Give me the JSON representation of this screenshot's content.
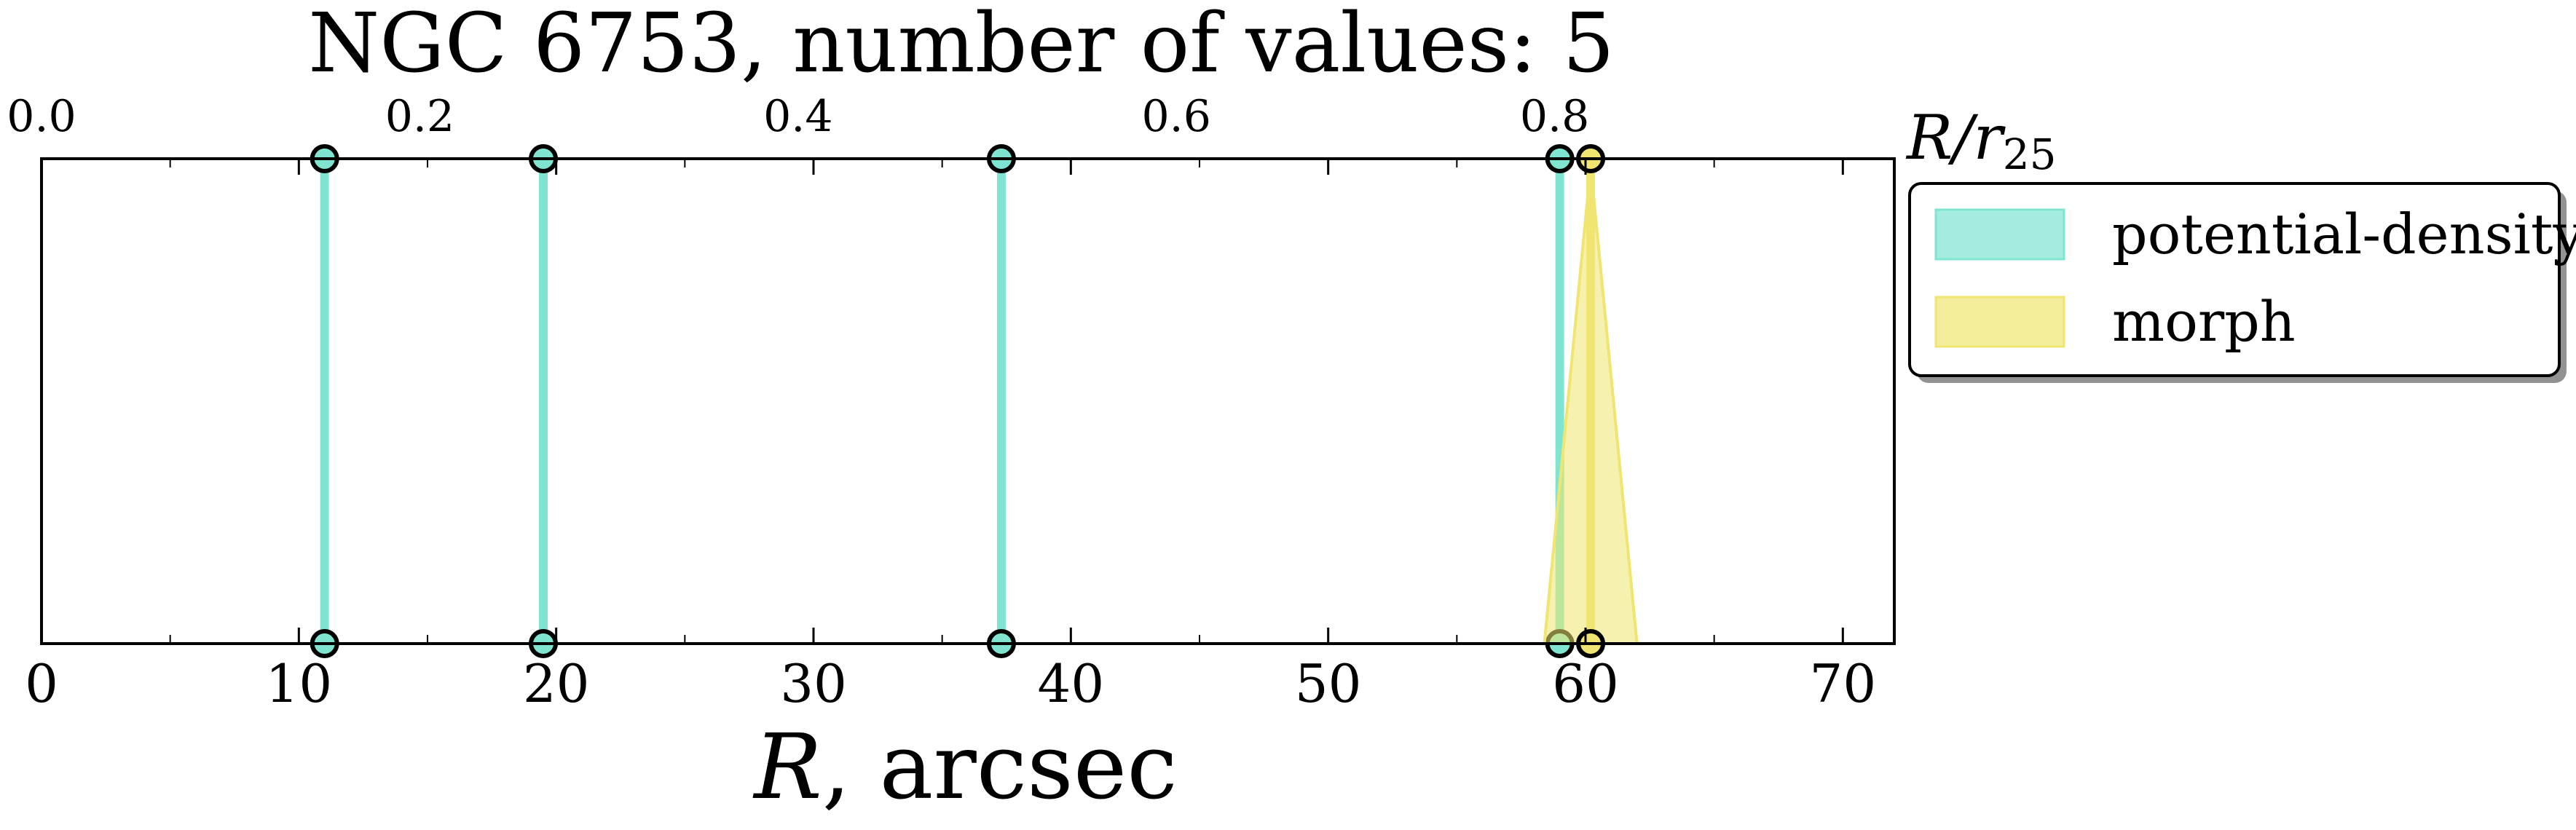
{
  "chart_data": {
    "type": "line",
    "title": "NGC 6753, number of values: 5",
    "xlabel_italic": "R",
    "xlabel_rest": ", arcsec",
    "x_axis": {
      "range": [
        0,
        72
      ],
      "ticks": [
        0,
        10,
        20,
        30,
        40,
        50,
        60,
        70
      ],
      "tick_labels": [
        "0",
        "10",
        "20",
        "30",
        "40",
        "50",
        "60",
        "70"
      ]
    },
    "top_axis": {
      "label_main": "R/r",
      "label_sub": "25",
      "ticks": [
        0.0,
        0.2,
        0.4,
        0.6,
        0.8
      ],
      "tick_labels": [
        "0.0",
        "0.2",
        "0.4",
        "0.6",
        "0.8"
      ],
      "r25_arcsec": 73.5
    },
    "y_axis": {
      "range": [
        0,
        1
      ],
      "ticks_visible": false
    },
    "grid": false,
    "legend": {
      "placement": "outside-right-top",
      "entries": [
        {
          "label": "potential-density",
          "color": "#7fe5d0"
        },
        {
          "label": "morph",
          "color": "#f0e570"
        }
      ]
    },
    "series": [
      {
        "name": "potential-density",
        "color": "#7fe5d0",
        "x": [
          11.0,
          19.5,
          37.3,
          59.0
        ],
        "errors": [
          0,
          0,
          0,
          0
        ]
      },
      {
        "name": "morph",
        "color": "#f0e570",
        "x": [
          60.2
        ],
        "errors": [
          1.8
        ]
      }
    ]
  }
}
